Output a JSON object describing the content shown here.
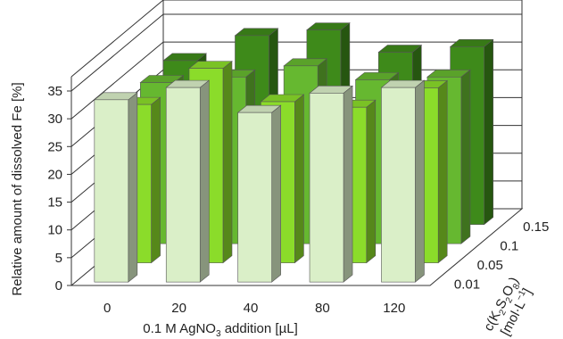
{
  "chart_data": {
    "type": "bar",
    "bar_style": "3d-depth",
    "categories": [
      "0",
      "20",
      "40",
      "80",
      "120"
    ],
    "depth_categories": [
      "0.01",
      "0.05",
      "0.1",
      "0.15"
    ],
    "series": [
      {
        "name": "0.01",
        "color": "#daefc8",
        "values": [
          32.8,
          35.0,
          30.5,
          34.0,
          35.0
        ]
      },
      {
        "name": "0.05",
        "color": "#8bdc2a",
        "values": [
          28.5,
          35.0,
          29.0,
          28.0,
          31.5
        ]
      },
      {
        "name": "0.1",
        "color": "#66b830",
        "values": [
          29.0,
          30.0,
          32.0,
          29.5,
          30.0
        ]
      },
      {
        "name": "0.15",
        "color": "#3e8a1a",
        "values": [
          29.5,
          34.0,
          35.0,
          31.0,
          32.0
        ]
      }
    ],
    "ylim": [
      0,
      35
    ],
    "yticks": [
      0,
      5,
      10,
      15,
      20,
      25,
      30,
      35
    ],
    "grid": true,
    "ylabel": "Relative amount of dissolved Fe [%]",
    "xlabel": {
      "pre": "0.1 M AgNO",
      "sub": "3",
      "post": " addition [µL]"
    },
    "zlabel": {
      "line1_pre": "c(K",
      "line1_sub1": "2",
      "line1_mid1": "S",
      "line1_sub2": "2",
      "line1_mid2": "O",
      "line1_sub3": "8",
      "line1_post": ")",
      "line2_pre": "[mol·L",
      "line2_sup": "−1",
      "line2_post": "]"
    }
  }
}
